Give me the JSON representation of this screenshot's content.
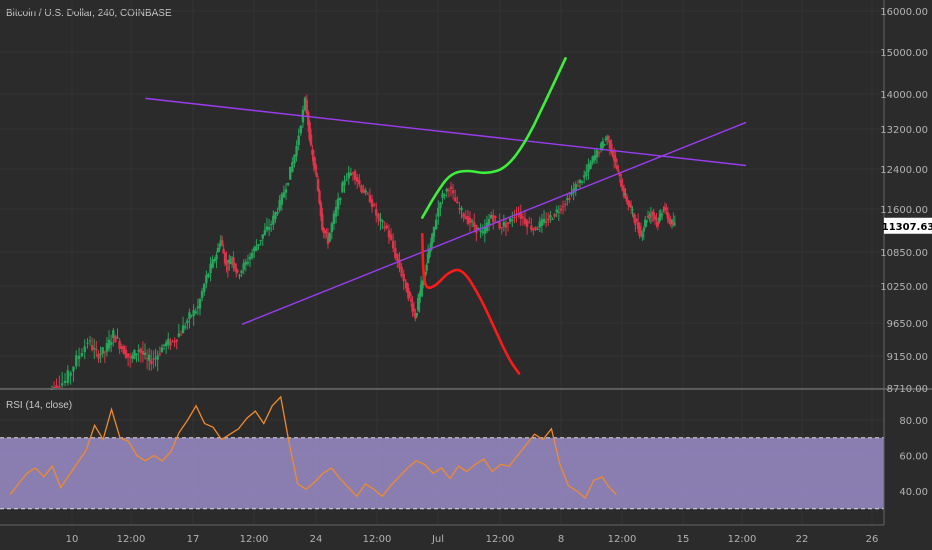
{
  "chart_data": {
    "type": "candlestick",
    "symbol_title": "Bitcoin / U.S. Dollar, 240, COINBASE",
    "rsi_title": "RSI (14, close)",
    "current_price": "11307.63",
    "colors": {
      "background": "#2b2b2b",
      "up": "#26a65b",
      "down": "#e0334a",
      "trendline": "#9b3cf0",
      "bull_projection": "#3cf03c",
      "bear_projection": "#ff1a1a",
      "rsi_line": "#f08a2c",
      "rsi_band": "#9b8dc9",
      "price_badge_bg": "#ffffff",
      "price_badge_text": "#000000"
    },
    "price_axis": {
      "ticks": [
        "16000.00",
        "15000.00",
        "14000.00",
        "13200.00",
        "12400.00",
        "11600.00",
        "10850.00",
        "10250.00",
        "9650.00",
        "9150.00",
        "8710.00"
      ],
      "ylim": [
        8710,
        16000
      ],
      "scale": "log"
    },
    "rsi_axis": {
      "ticks": [
        "80.00",
        "60.00",
        "40.00"
      ],
      "ylim": [
        20,
        100
      ],
      "band": [
        30,
        70
      ]
    },
    "time_axis": {
      "ticks": [
        "10",
        "12:00",
        "17",
        "12:00",
        "24",
        "12:00",
        "Jul",
        "12:00",
        "8",
        "12:00",
        "15",
        "12:00",
        "22",
        "26"
      ]
    },
    "trendlines": [
      {
        "name": "descending-resistance",
        "start": [
          4.8,
          13900
        ],
        "end": [
          26.1,
          12470
        ]
      },
      {
        "name": "ascending-support",
        "start": [
          8.23,
          9630
        ],
        "end": [
          26.1,
          13350
        ]
      }
    ],
    "bullish_projection": [
      [
        14.62,
        11450
      ],
      [
        15.1,
        11900
      ],
      [
        15.6,
        12300
      ],
      [
        16.2,
        12380
      ],
      [
        16.9,
        12300
      ],
      [
        17.6,
        12420
      ],
      [
        18.3,
        12950
      ],
      [
        19.0,
        13850
      ],
      [
        19.7,
        14850
      ]
    ],
    "bearish_projection": [
      [
        14.62,
        11160
      ],
      [
        14.65,
        10500
      ],
      [
        14.75,
        10200
      ],
      [
        15.1,
        10250
      ],
      [
        15.55,
        10500
      ],
      [
        16.05,
        10560
      ],
      [
        16.7,
        10050
      ],
      [
        17.2,
        9550
      ],
      [
        17.7,
        9100
      ],
      [
        18.05,
        8910
      ]
    ],
    "price_series": [
      [
        1.3,
        8630
      ],
      [
        1.6,
        8740
      ],
      [
        2.0,
        8800
      ],
      [
        2.4,
        9100
      ],
      [
        2.8,
        9380
      ],
      [
        3.1,
        9180
      ],
      [
        3.4,
        9220
      ],
      [
        3.7,
        9480
      ],
      [
        4.0,
        9280
      ],
      [
        4.3,
        9100
      ],
      [
        4.6,
        9260
      ],
      [
        4.9,
        9080
      ],
      [
        5.2,
        9130
      ],
      [
        5.5,
        9320
      ],
      [
        5.8,
        9370
      ],
      [
        6.1,
        9520
      ],
      [
        6.4,
        9750
      ],
      [
        6.7,
        9900
      ],
      [
        7.0,
        10400
      ],
      [
        7.3,
        10750
      ],
      [
        7.5,
        11050
      ],
      [
        7.7,
        10600
      ],
      [
        7.9,
        10750
      ],
      [
        8.1,
        10450
      ],
      [
        8.4,
        10650
      ],
      [
        8.7,
        10900
      ],
      [
        9.0,
        11150
      ],
      [
        9.3,
        11350
      ],
      [
        9.6,
        11700
      ],
      [
        9.9,
        12200
      ],
      [
        10.2,
        12850
      ],
      [
        10.5,
        13850
      ],
      [
        10.7,
        12800
      ],
      [
        10.9,
        12200
      ],
      [
        11.1,
        11300
      ],
      [
        11.3,
        11050
      ],
      [
        11.6,
        11600
      ],
      [
        11.9,
        12200
      ],
      [
        12.2,
        12350
      ],
      [
        12.5,
        12000
      ],
      [
        12.8,
        11800
      ],
      [
        13.1,
        11400
      ],
      [
        13.4,
        11250
      ],
      [
        13.7,
        10800
      ],
      [
        14.0,
        10350
      ],
      [
        14.2,
        10050
      ],
      [
        14.4,
        9760
      ],
      [
        14.6,
        10200
      ],
      [
        14.8,
        10650
      ],
      [
        15.0,
        11100
      ],
      [
        15.3,
        11800
      ],
      [
        15.6,
        12050
      ],
      [
        15.9,
        11650
      ],
      [
        16.2,
        11450
      ],
      [
        16.5,
        11300
      ],
      [
        16.8,
        11150
      ],
      [
        17.1,
        11500
      ],
      [
        17.4,
        11300
      ],
      [
        17.7,
        11350
      ],
      [
        18.0,
        11550
      ],
      [
        18.3,
        11400
      ],
      [
        18.6,
        11250
      ],
      [
        18.9,
        11350
      ],
      [
        19.2,
        11450
      ],
      [
        19.5,
        11600
      ],
      [
        19.8,
        11800
      ],
      [
        20.1,
        12050
      ],
      [
        20.4,
        12250
      ],
      [
        20.7,
        12600
      ],
      [
        21.0,
        12850
      ],
      [
        21.2,
        13050
      ],
      [
        21.4,
        12700
      ],
      [
        21.6,
        12300
      ],
      [
        21.8,
        11900
      ],
      [
        22.0,
        11650
      ],
      [
        22.2,
        11400
      ],
      [
        22.4,
        11150
      ],
      [
        22.6,
        11450
      ],
      [
        22.8,
        11550
      ],
      [
        23.0,
        11350
      ],
      [
        23.2,
        11650
      ],
      [
        23.4,
        11400
      ],
      [
        23.6,
        11300
      ]
    ],
    "rsi_series": [
      [
        0.0,
        38
      ],
      [
        0.3,
        44
      ],
      [
        0.6,
        50
      ],
      [
        0.9,
        53
      ],
      [
        1.2,
        48
      ],
      [
        1.5,
        54
      ],
      [
        1.8,
        42
      ],
      [
        2.1,
        49
      ],
      [
        2.4,
        56
      ],
      [
        2.7,
        63
      ],
      [
        3.0,
        77
      ],
      [
        3.3,
        69
      ],
      [
        3.6,
        86
      ],
      [
        3.9,
        70
      ],
      [
        4.2,
        68
      ],
      [
        4.5,
        60
      ],
      [
        4.8,
        57
      ],
      [
        5.1,
        60
      ],
      [
        5.4,
        57
      ],
      [
        5.7,
        62
      ],
      [
        6.0,
        73
      ],
      [
        6.3,
        80
      ],
      [
        6.6,
        88
      ],
      [
        6.9,
        78
      ],
      [
        7.2,
        76
      ],
      [
        7.5,
        69
      ],
      [
        7.8,
        72
      ],
      [
        8.1,
        75
      ],
      [
        8.4,
        81
      ],
      [
        8.7,
        85
      ],
      [
        9.0,
        78
      ],
      [
        9.3,
        88
      ],
      [
        9.6,
        93
      ],
      [
        9.9,
        67
      ],
      [
        10.2,
        44
      ],
      [
        10.5,
        41
      ],
      [
        10.8,
        45
      ],
      [
        11.1,
        50
      ],
      [
        11.4,
        53
      ],
      [
        11.7,
        47
      ],
      [
        12.0,
        42
      ],
      [
        12.3,
        37
      ],
      [
        12.6,
        44
      ],
      [
        12.9,
        41
      ],
      [
        13.2,
        37
      ],
      [
        13.5,
        43
      ],
      [
        13.8,
        48
      ],
      [
        14.1,
        53
      ],
      [
        14.4,
        57
      ],
      [
        14.7,
        55
      ],
      [
        15.0,
        50
      ],
      [
        15.3,
        53
      ],
      [
        15.6,
        47
      ],
      [
        15.9,
        54
      ],
      [
        16.2,
        51
      ],
      [
        16.5,
        55
      ],
      [
        16.8,
        58
      ],
      [
        17.1,
        51
      ],
      [
        17.4,
        55
      ],
      [
        17.7,
        54
      ],
      [
        18.0,
        60
      ],
      [
        18.3,
        66
      ],
      [
        18.6,
        72
      ],
      [
        18.9,
        69
      ],
      [
        19.2,
        75
      ],
      [
        19.5,
        55
      ],
      [
        19.8,
        43
      ],
      [
        20.1,
        40
      ],
      [
        20.4,
        36
      ],
      [
        20.7,
        46
      ],
      [
        21.0,
        48
      ],
      [
        21.2,
        43
      ],
      [
        21.5,
        38
      ]
    ]
  }
}
